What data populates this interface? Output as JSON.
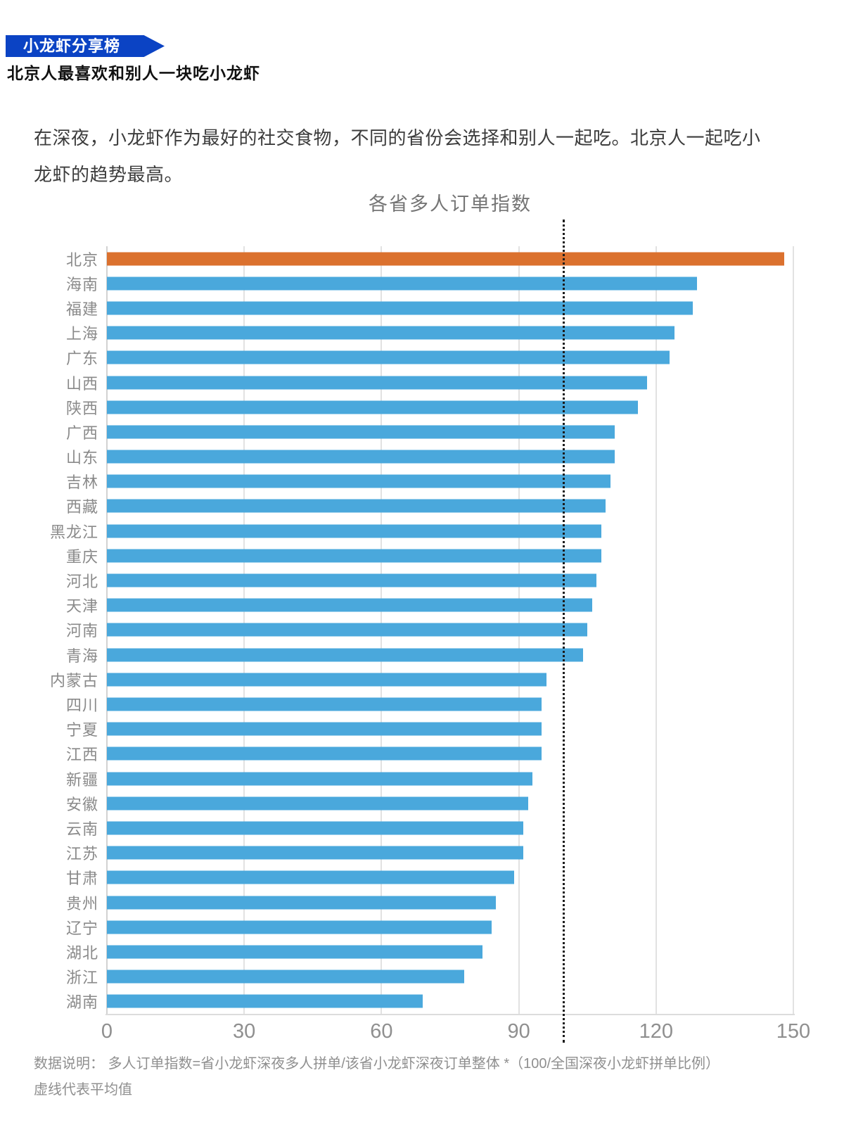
{
  "header": {
    "badge_label": "小龙虾分享榜",
    "headline": "北京人最喜欢和别人一块吃小龙虾",
    "description": "在深夜，小龙虾作为最好的社交食物，不同的省份会选择和别人一起吃。北京人一起吃小龙虾的趋势最高。"
  },
  "colors": {
    "badge_blue": "#0B43C4",
    "highlight_orange": "#DB712E",
    "bar_blue": "#4AA8DC",
    "gridline": "#E2E2E2",
    "mean_line": "#1C1C1C"
  },
  "chart_data": {
    "type": "bar",
    "orientation": "horizontal",
    "title": "各省多人订单指数",
    "categories": [
      "北京",
      "海南",
      "福建",
      "上海",
      "广东",
      "山西",
      "陕西",
      "广西",
      "山东",
      "吉林",
      "西藏",
      "黑龙江",
      "重庆",
      "河北",
      "天津",
      "河南",
      "青海",
      "内蒙古",
      "四川",
      "宁夏",
      "江西",
      "新疆",
      "安徽",
      "云南",
      "江苏",
      "甘肃",
      "贵州",
      "辽宁",
      "湖北",
      "浙江",
      "湖南"
    ],
    "values": [
      148,
      129,
      128,
      124,
      123,
      118,
      116,
      111,
      111,
      110,
      109,
      108,
      108,
      107,
      106,
      105,
      104,
      96,
      95,
      95,
      95,
      93,
      92,
      91,
      91,
      89,
      85,
      84,
      82,
      78,
      69
    ],
    "highlight_category": "北京",
    "highlight_color": "#DB712E",
    "bar_color": "#4AA8DC",
    "xlim": [
      0,
      150
    ],
    "x_ticks": [
      0,
      30,
      60,
      90,
      120,
      150
    ],
    "mean_line_value": 100,
    "mean_line_style": "dotted",
    "grid": true,
    "legend": false
  },
  "footer": {
    "note_line1": "数据说明：  多人订单指数=省小龙虾深夜多人拼单/该省小龙虾深夜订单整体 *（100/全国深夜小龙虾拼单比例）",
    "note_line2": "虚线代表平均值"
  }
}
